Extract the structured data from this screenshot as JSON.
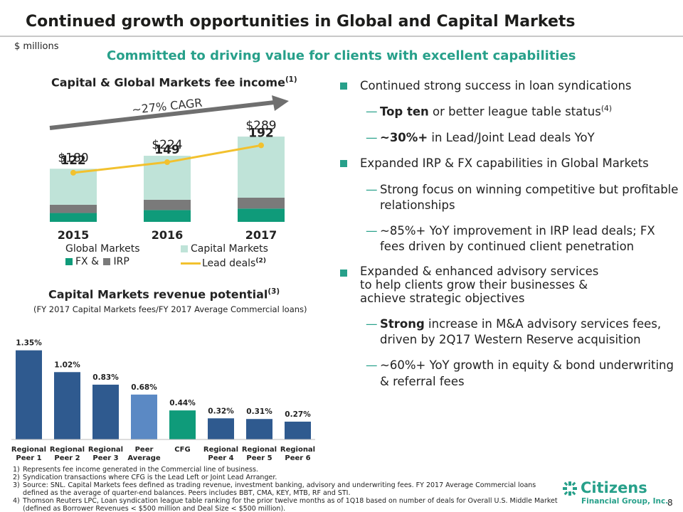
{
  "header": {
    "title": "Continued growth opportunities in Global and Capital Markets",
    "units": "$  millions",
    "subtitle": "Committed to driving value for clients with excellent capabilities"
  },
  "fee_chart_text": {
    "title": "Capital & Global Markets fee income",
    "title_note": "(1)",
    "cagr": "~27% CAGR",
    "legend_group": "Global Markets",
    "legend_fx": "FX &",
    "legend_irp": "IRP",
    "legend_cm": "Capital Markets",
    "legend_lead": "Lead deals",
    "legend_lead_note": "(2)"
  },
  "rev_chart_text": {
    "title": "Capital Markets revenue potential",
    "title_note": "(3)",
    "subtitle": "(FY 2017 Capital Markets fees/FY 2017 Average Commercial loans)"
  },
  "chart_data": [
    {
      "type": "bar",
      "title": "Capital & Global Markets fee income(1)",
      "categories": [
        "2015",
        "2016",
        "2017"
      ],
      "totals_label": [
        "$180",
        "$224",
        "$289"
      ],
      "totals": [
        180,
        224,
        289
      ],
      "series": [
        {
          "name": "FX",
          "values": [
            30,
            40,
            45
          ],
          "color": "#0f9b7a"
        },
        {
          "name": "IRP",
          "values": [
            28,
            35,
            37
          ],
          "color": "#7a7a7a"
        },
        {
          "name": "Capital Markets",
          "values": [
            122,
            149,
            207
          ],
          "color": "#bfe3d8"
        }
      ],
      "line": {
        "name": "Lead deals(2)",
        "values": [
          122,
          149,
          192
        ],
        "labels": [
          "122",
          "149",
          "192"
        ],
        "color": "#f2c12e"
      },
      "annotation": "~27% CAGR",
      "ylim": [
        0,
        310
      ]
    },
    {
      "type": "bar",
      "title": "Capital Markets revenue potential(3)",
      "categories": [
        "Regional|Peer 1",
        "Regional|Peer 2",
        "Regional|Peer 3",
        "Peer|Average",
        "CFG",
        "Regional|Peer 4",
        "Regional|Peer 5",
        "Regional|Peer 6"
      ],
      "values": [
        1.35,
        1.02,
        0.83,
        0.68,
        0.44,
        0.32,
        0.31,
        0.27
      ],
      "labels": [
        "1.35%",
        "1.02%",
        "0.83%",
        "0.68%",
        "0.44%",
        "0.32%",
        "0.31%",
        "0.27%"
      ],
      "colors": [
        "#2f5a8f",
        "#2f5a8f",
        "#2f5a8f",
        "#5b89c4",
        "#0f9b7a",
        "#2f5a8f",
        "#2f5a8f",
        "#2f5a8f"
      ],
      "ylim": [
        0,
        1.4
      ]
    }
  ],
  "bullets": {
    "b1": "Continued strong success in loan syndications",
    "b1s1_bold": "Top ten",
    "b1s1_rest": " or better league table status",
    "b1s1_note": "(4)",
    "b1s2_bold": "~30%+",
    "b1s2_rest": " in Lead/Joint Lead deals YoY",
    "b2": "Expanded IRP & FX capabilities in Global Markets",
    "b2s1": "Strong focus on winning competitive but profitable relationships",
    "b2s2": "~85%+ YoY improvement in IRP lead deals; FX fees driven by continued client penetration",
    "b3": "Expanded & enhanced advisory services to help clients grow their businesses & achieve strategic objectives",
    "b3s1_bold": "Strong",
    "b3s1_rest": " increase in M&A advisory services fees, driven by 2Q17 Western Reserve acquisition",
    "b3s2": "~60%+ YoY growth in equity & bond underwriting & referral fees",
    "dash": "—"
  },
  "footnotes": [
    {
      "num": "1)",
      "text": "Represents fee income generated in the Commercial line of business."
    },
    {
      "num": "2)",
      "text": "Syndication transactions where CFG is the Lead Left or Joint Lead Arranger."
    },
    {
      "num": "3)",
      "text": "Source: SNL. Capital Markets fees defined as trading revenue, investment banking, advisory and underwriting fees. FY 2017 Average Commercial loans defined as the average of quarter-end balances. Peers includes BBT, CMA, KEY, MTB, RF and STI."
    },
    {
      "num": "4)",
      "text": "Thomson Reuters LPC, Loan syndication league table ranking for the prior twelve months as of 1Q18 based on number of deals for Overall U.S. Middle Market (defined as Borrower Revenues < $500 million and Deal Size < $500 million)."
    }
  ],
  "logo": {
    "name": "Citizens",
    "sub": "Financial Group, Inc.",
    "icon": "citizens-logo-icon"
  },
  "page_number": "8"
}
